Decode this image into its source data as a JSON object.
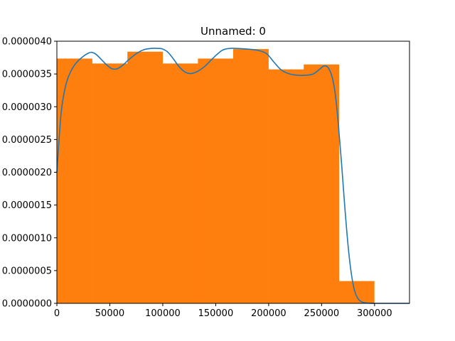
{
  "chart_data": {
    "type": "bar",
    "title": "Unnamed: 0",
    "xlabel": "",
    "ylabel": "",
    "xlim": [
      0,
      333000
    ],
    "ylim": [
      0,
      4e-06
    ],
    "grid": false,
    "x_ticks": [
      0,
      50000,
      100000,
      150000,
      200000,
      250000,
      300000
    ],
    "x_tick_labels": [
      "0",
      "50000",
      "100000",
      "150000",
      "200000",
      "250000",
      "300000"
    ],
    "y_ticks": [
      0,
      5e-07,
      1e-06,
      1.5e-06,
      2e-06,
      2.5e-06,
      3e-06,
      3.5e-06,
      4e-06
    ],
    "y_tick_labels": [
      "0.0000000",
      "0.0000005",
      "0.0000010",
      "0.0000015",
      "0.0000020",
      "0.0000025",
      "0.0000030",
      "0.0000035",
      "0.0000040"
    ],
    "histogram": {
      "color": "#ff7f0e",
      "bins": [
        {
          "x0": 0,
          "x1": 33300,
          "density": 3.735e-06
        },
        {
          "x0": 33300,
          "x1": 66600,
          "density": 3.66e-06
        },
        {
          "x0": 66600,
          "x1": 99900,
          "density": 3.84e-06
        },
        {
          "x0": 99900,
          "x1": 133200,
          "density": 3.66e-06
        },
        {
          "x0": 133200,
          "x1": 166500,
          "density": 3.735e-06
        },
        {
          "x0": 166500,
          "x1": 199800,
          "density": 3.88e-06
        },
        {
          "x0": 199800,
          "x1": 233100,
          "density": 3.57e-06
        },
        {
          "x0": 233100,
          "x1": 266400,
          "density": 3.645e-06
        },
        {
          "x0": 266400,
          "x1": 299700,
          "density": 3.4e-07
        }
      ]
    },
    "kde": {
      "color": "#1f77b4",
      "x": [
        0,
        4000,
        8000,
        12000,
        16000,
        20000,
        25000,
        30000,
        33000,
        37000,
        42000,
        47000,
        52000,
        57000,
        62000,
        68000,
        75000,
        82000,
        89000,
        96000,
        100000,
        105000,
        110000,
        115000,
        120000,
        124000,
        128000,
        133000,
        140000,
        148000,
        156000,
        163000,
        170000,
        180000,
        190000,
        198000,
        205000,
        212000,
        220000,
        228000,
        235000,
        242000,
        248000,
        252000,
        256000,
        260000,
        263000,
        266000,
        269000,
        272000,
        275000,
        278000,
        281000,
        284000,
        287000,
        290000,
        294000,
        298000,
        300000
      ],
      "y": [
        2e-06,
        2.9e-06,
        3.3e-06,
        3.5e-06,
        3.62e-06,
        3.7e-06,
        3.77e-06,
        3.82e-06,
        3.83e-06,
        3.8e-06,
        3.72e-06,
        3.64e-06,
        3.58e-06,
        3.58e-06,
        3.63e-06,
        3.72e-06,
        3.81e-06,
        3.87e-06,
        3.89e-06,
        3.89e-06,
        3.88e-06,
        3.83e-06,
        3.73e-06,
        3.62e-06,
        3.54e-06,
        3.51e-06,
        3.51e-06,
        3.54e-06,
        3.62e-06,
        3.75e-06,
        3.86e-06,
        3.89e-06,
        3.89e-06,
        3.88e-06,
        3.86e-06,
        3.81e-06,
        3.68e-06,
        3.56e-06,
        3.5e-06,
        3.48e-06,
        3.48e-06,
        3.5e-06,
        3.57e-06,
        3.62e-06,
        3.6e-06,
        3.45e-06,
        3.18e-06,
        2.7e-06,
        2.1e-06,
        1.45e-06,
        8.8e-07,
        4.6e-07,
        2e-07,
        8e-08,
        3e-08,
        1e-08,
        3e-09,
        5e-10,
        0
      ]
    }
  }
}
